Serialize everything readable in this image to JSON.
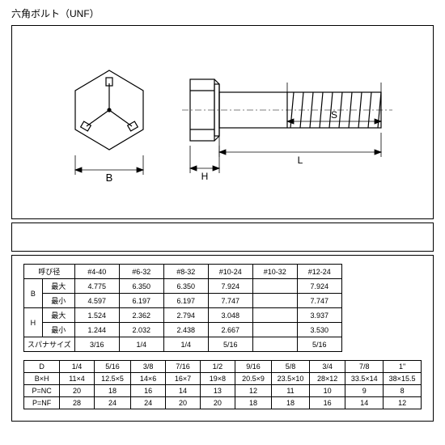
{
  "title": "六角ボルト（UNF）",
  "diagram": {
    "labels": {
      "B": "B",
      "H": "H",
      "L": "L",
      "S": "S"
    },
    "stroke": "#000000",
    "dim_stroke": "#000000",
    "bg": "#ffffff"
  },
  "table1": {
    "header": [
      "呼び径",
      "#4-40",
      "#6-32",
      "#8-32",
      "#10-24",
      "#10-32",
      "#12-24"
    ],
    "rows": [
      {
        "group": "B",
        "sub": "最大",
        "vals": [
          "4.775",
          "6.350",
          "6.350",
          "7.924",
          "",
          "7.924"
        ]
      },
      {
        "group": "B",
        "sub": "最小",
        "vals": [
          "4.597",
          "6.197",
          "6.197",
          "7.747",
          "",
          "7.747"
        ]
      },
      {
        "group": "H",
        "sub": "最大",
        "vals": [
          "1.524",
          "2.362",
          "2.794",
          "3.048",
          "",
          "3.937"
        ]
      },
      {
        "group": "H",
        "sub": "最小",
        "vals": [
          "1.244",
          "2.032",
          "2.438",
          "2.667",
          "",
          "3.530"
        ]
      }
    ],
    "spanner": {
      "label": "スパナサイズ",
      "vals": [
        "3/16",
        "1/4",
        "1/4",
        "5/16",
        "",
        "5/16"
      ]
    }
  },
  "table2": {
    "header": [
      "D",
      "1/4",
      "5/16",
      "3/8",
      "7/16",
      "1/2",
      "9/16",
      "5/8",
      "3/4",
      "7/8",
      "1\""
    ],
    "rows": [
      {
        "label": "B×H",
        "vals": [
          "11×4",
          "12.5×5",
          "14×6",
          "16×7",
          "19×8",
          "20.5×9",
          "23.5×10",
          "28×12",
          "33.5×14",
          "38×15.5"
        ]
      },
      {
        "label": "P=NC",
        "vals": [
          "20",
          "18",
          "16",
          "14",
          "13",
          "12",
          "11",
          "10",
          "9",
          "8"
        ]
      },
      {
        "label": "P=NF",
        "vals": [
          "28",
          "24",
          "24",
          "20",
          "20",
          "18",
          "18",
          "16",
          "14",
          "12"
        ]
      }
    ]
  }
}
